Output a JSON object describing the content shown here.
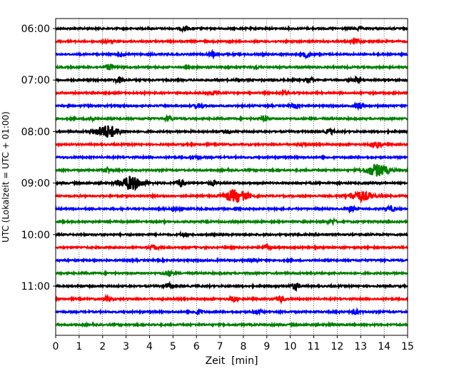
{
  "chart_data": {
    "type": "line",
    "title": "",
    "xlabel": "Zeit  [min]",
    "ylabel": "UTC (Lokalzeit = UTC + 01:00)",
    "xlim": [
      0,
      15
    ],
    "x_ticks": [
      "0",
      "1",
      "2",
      "3",
      "4",
      "5",
      "6",
      "7",
      "8",
      "9",
      "10",
      "11",
      "12",
      "13",
      "14",
      "15"
    ],
    "y_ticks": [
      "06:00",
      "07:00",
      "08:00",
      "09:00",
      "10:00",
      "11:00"
    ],
    "grid": "vertical dotted",
    "colors": [
      "#000000",
      "#ff0000",
      "#0000ff",
      "#008000"
    ],
    "series": [
      {
        "trace_start": "06:00",
        "color": "#000000",
        "events": [
          {
            "t": 5.5,
            "amp": 0.35
          },
          {
            "t": 12.9,
            "amp": 0.2
          }
        ]
      },
      {
        "trace_start": "06:15",
        "color": "#ff0000",
        "events": [
          {
            "t": 12.8,
            "amp": 0.35
          },
          {
            "t": 2.2,
            "amp": 0.15
          }
        ]
      },
      {
        "trace_start": "06:30",
        "color": "#0000ff",
        "events": [
          {
            "t": 2.8,
            "amp": 0.3
          },
          {
            "t": 6.7,
            "amp": 0.35
          },
          {
            "t": 10.7,
            "amp": 0.45
          }
        ]
      },
      {
        "trace_start": "06:45",
        "color": "#008000",
        "events": [
          {
            "t": 2.3,
            "amp": 0.4
          },
          {
            "t": 8.6,
            "amp": 0.15
          }
        ]
      },
      {
        "trace_start": "07:00",
        "color": "#000000",
        "events": [
          {
            "t": 2.7,
            "amp": 0.45
          },
          {
            "t": 10.8,
            "amp": 0.3
          },
          {
            "t": 12.8,
            "amp": 0.3
          }
        ]
      },
      {
        "trace_start": "07:15",
        "color": "#ff0000",
        "events": [
          {
            "t": 6.8,
            "amp": 0.3
          },
          {
            "t": 9.8,
            "amp": 0.2
          }
        ]
      },
      {
        "trace_start": "07:30",
        "color": "#0000ff",
        "events": [
          {
            "t": 6.1,
            "amp": 0.3
          },
          {
            "t": 10.2,
            "amp": 0.3
          },
          {
            "t": 12.9,
            "amp": 0.45
          }
        ]
      },
      {
        "trace_start": "07:45",
        "color": "#008000",
        "events": [
          {
            "t": 1.5,
            "amp": 0.25
          },
          {
            "t": 4.8,
            "amp": 0.35
          },
          {
            "t": 8.9,
            "amp": 0.3
          }
        ]
      },
      {
        "trace_start": "08:00",
        "color": "#000000",
        "events": [
          {
            "t": 2.2,
            "amp": 0.95
          },
          {
            "t": 7.3,
            "amp": 0.2
          },
          {
            "t": 11.7,
            "amp": 0.35
          }
        ]
      },
      {
        "trace_start": "08:15",
        "color": "#ff0000",
        "events": [
          {
            "t": 13.7,
            "amp": 0.55
          },
          {
            "t": 10.5,
            "amp": 0.2
          }
        ]
      },
      {
        "trace_start": "08:30",
        "color": "#0000ff",
        "events": [
          {
            "t": 6.0,
            "amp": 0.2
          }
        ]
      },
      {
        "trace_start": "08:45",
        "color": "#008000",
        "events": [
          {
            "t": 2.2,
            "amp": 0.35
          },
          {
            "t": 13.7,
            "amp": 0.9
          }
        ]
      },
      {
        "trace_start": "09:00",
        "color": "#000000",
        "events": [
          {
            "t": 3.2,
            "amp": 1.0
          },
          {
            "t": 5.3,
            "amp": 0.6
          },
          {
            "t": 6.7,
            "amp": 0.35
          }
        ]
      },
      {
        "trace_start": "09:15",
        "color": "#ff0000",
        "events": [
          {
            "t": 7.7,
            "amp": 0.9
          },
          {
            "t": 13.0,
            "amp": 0.7
          }
        ]
      },
      {
        "trace_start": "09:30",
        "color": "#0000ff",
        "events": [
          {
            "t": 5.2,
            "amp": 0.3
          },
          {
            "t": 12.6,
            "amp": 0.4
          },
          {
            "t": 14.3,
            "amp": 0.35
          }
        ]
      },
      {
        "trace_start": "09:45",
        "color": "#008000",
        "events": [
          {
            "t": 11.8,
            "amp": 0.3
          }
        ]
      },
      {
        "trace_start": "10:00",
        "color": "#000000",
        "events": [
          {
            "t": 5.5,
            "amp": 0.25
          }
        ]
      },
      {
        "trace_start": "10:15",
        "color": "#ff0000",
        "events": [
          {
            "t": 4.2,
            "amp": 0.3
          },
          {
            "t": 9.0,
            "amp": 0.4
          }
        ]
      },
      {
        "trace_start": "10:30",
        "color": "#0000ff",
        "events": [
          {
            "t": 8.5,
            "amp": 0.2
          }
        ]
      },
      {
        "trace_start": "10:45",
        "color": "#008000",
        "events": [
          {
            "t": 4.8,
            "amp": 0.35
          }
        ]
      },
      {
        "trace_start": "11:00",
        "color": "#000000",
        "events": [
          {
            "t": 4.8,
            "amp": 0.35
          },
          {
            "t": 10.2,
            "amp": 0.45
          }
        ]
      },
      {
        "trace_start": "11:15",
        "color": "#ff0000",
        "events": [
          {
            "t": 2.2,
            "amp": 0.3
          },
          {
            "t": 7.6,
            "amp": 0.35
          },
          {
            "t": 9.6,
            "amp": 0.4
          }
        ]
      },
      {
        "trace_start": "11:30",
        "color": "#0000ff",
        "events": [
          {
            "t": 6.1,
            "amp": 0.3
          },
          {
            "t": 8.6,
            "amp": 0.3
          },
          {
            "t": 12.8,
            "amp": 0.35
          }
        ]
      },
      {
        "trace_start": "11:45",
        "color": "#008000",
        "events": [
          {
            "t": 11.7,
            "amp": 0.2
          }
        ]
      }
    ]
  }
}
